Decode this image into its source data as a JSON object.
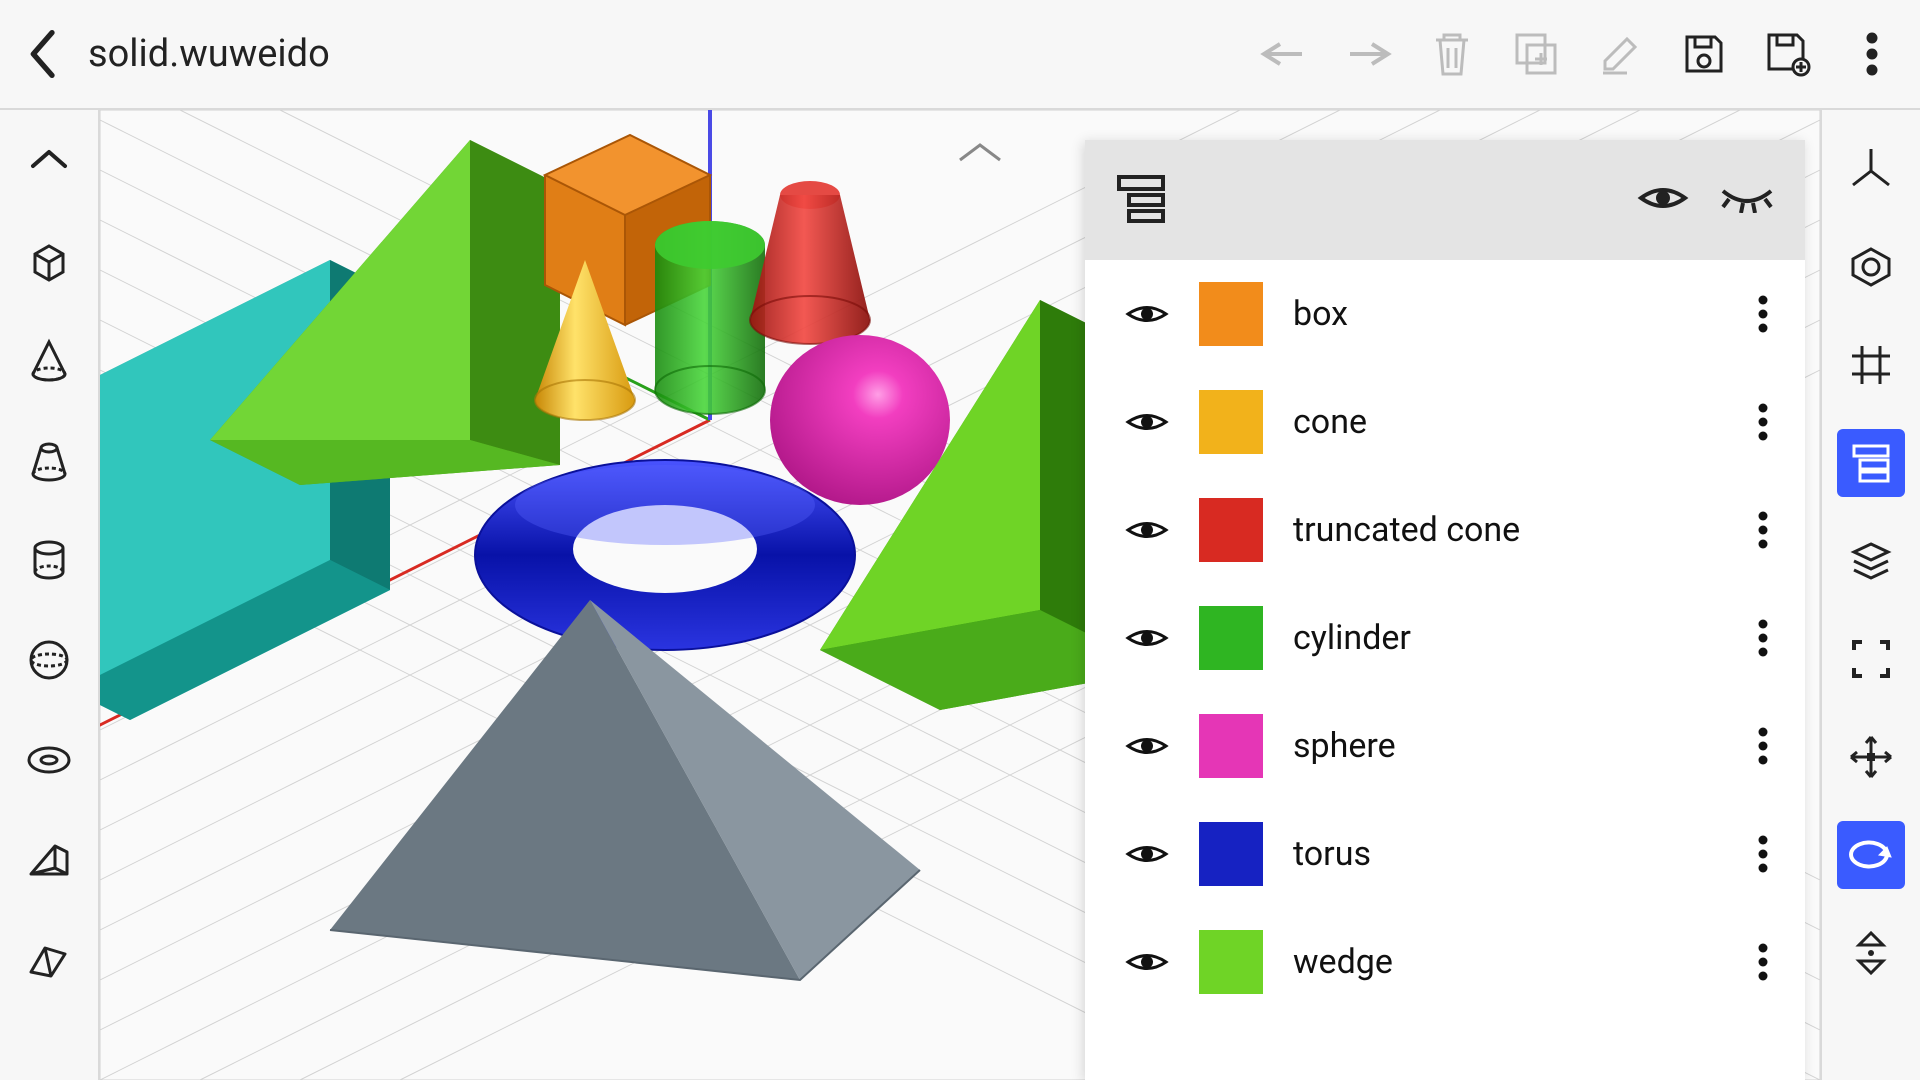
{
  "file_title": "solid.wuweido",
  "colors": {
    "accent": "#3a5bff",
    "ui_border": "#d9d9d9",
    "disabled": "#bcbcbc"
  },
  "topbar_actions": [
    {
      "name": "undo",
      "disabled": true
    },
    {
      "name": "redo",
      "disabled": true
    },
    {
      "name": "delete",
      "disabled": true
    },
    {
      "name": "duplicate",
      "disabled": true
    },
    {
      "name": "edit",
      "disabled": true
    },
    {
      "name": "save",
      "disabled": false
    },
    {
      "name": "save-as",
      "disabled": false
    },
    {
      "name": "overflow",
      "disabled": false
    }
  ],
  "left_tools": [
    "collapse",
    "box",
    "cone",
    "truncated-cone",
    "cylinder",
    "sphere",
    "torus",
    "wedge",
    "prism"
  ],
  "right_tools": [
    {
      "name": "axes",
      "active": false
    },
    {
      "name": "isometric",
      "active": false
    },
    {
      "name": "grid",
      "active": false
    },
    {
      "name": "layers",
      "active": true
    },
    {
      "name": "stack",
      "active": false
    },
    {
      "name": "fit",
      "active": false
    },
    {
      "name": "move",
      "active": false
    },
    {
      "name": "rotate",
      "active": true
    },
    {
      "name": "updown",
      "active": false
    }
  ],
  "layers": [
    {
      "label": "box",
      "color": "#f28c1b"
    },
    {
      "label": "cone",
      "color": "#f2b21b"
    },
    {
      "label": "truncated cone",
      "color": "#d82a22"
    },
    {
      "label": "cylinder",
      "color": "#2fb522"
    },
    {
      "label": "sphere",
      "color": "#e536b6"
    },
    {
      "label": "torus",
      "color": "#1622c2"
    },
    {
      "label": "wedge",
      "color": "#6fd426"
    }
  ],
  "scene": {
    "grid_color": "#cfcfcf",
    "grid_near_color": "#bababa",
    "axis_x": "#d82a22",
    "axis_y": "#29a01a",
    "axis_z": "#4a4ae6",
    "shapes": [
      {
        "type": "wedge",
        "color": "#6fd426"
      },
      {
        "type": "wedge2",
        "color": "#20bdb4"
      },
      {
        "type": "box",
        "color": "#f28c1b"
      },
      {
        "type": "cylinder",
        "color": "#2fb522"
      },
      {
        "type": "truncated_cone",
        "color": "#d82a22"
      },
      {
        "type": "cone",
        "color": "#f2b21b"
      },
      {
        "type": "sphere",
        "color": "#e536b6"
      },
      {
        "type": "big_wedge",
        "color": "#5bcf3a"
      },
      {
        "type": "torus",
        "color": "#1622c2"
      },
      {
        "type": "pyramid",
        "color": "#7d8a94"
      }
    ]
  }
}
